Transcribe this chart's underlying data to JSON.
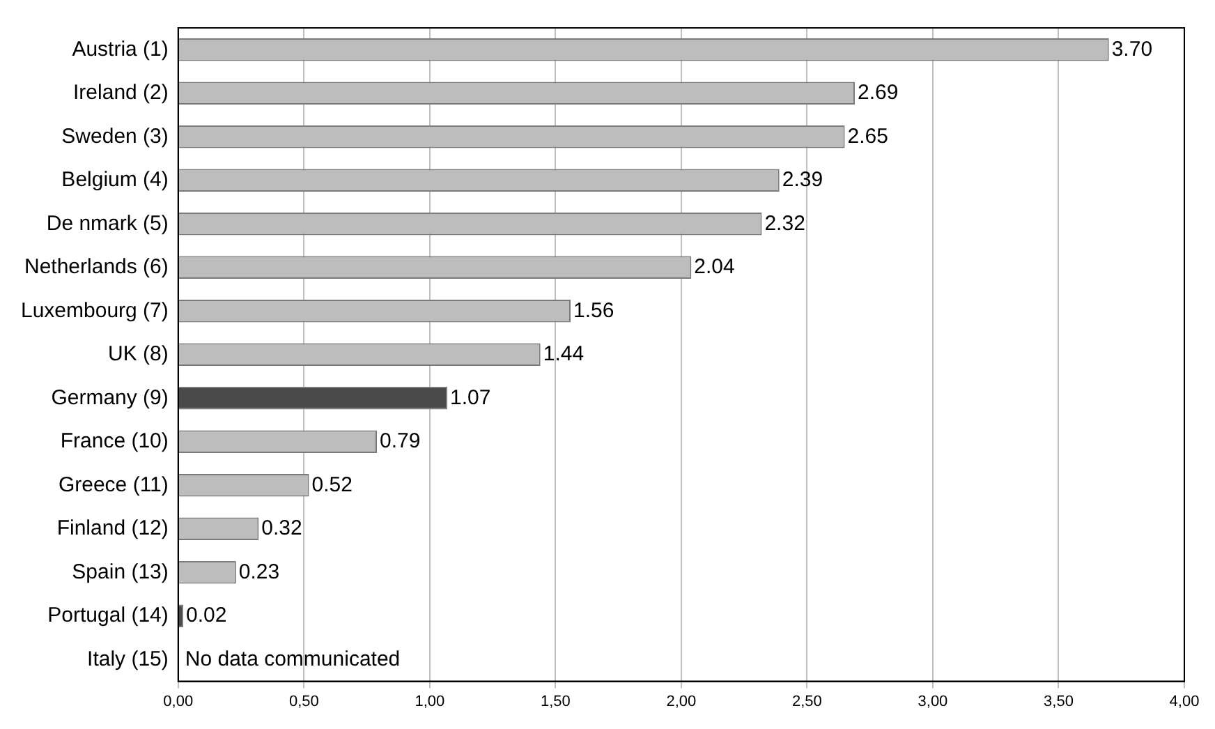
{
  "chart_data": {
    "type": "bar",
    "orientation": "horizontal",
    "categories": [
      "Austria (1)",
      "Ireland (2)",
      "Sweden (3)",
      "Belgium (4)",
      "De nmark (5)",
      "Netherlands (6)",
      "Luxembourg (7)",
      "UK (8)",
      "Germany (9)",
      "France (10)",
      "Greece (11)",
      "Finland (12)",
      "Spain (13)",
      "Portugal (14)",
      "Italy (15)"
    ],
    "values": [
      3.7,
      2.69,
      2.65,
      2.39,
      2.32,
      2.04,
      1.56,
      1.44,
      1.07,
      0.79,
      0.52,
      0.32,
      0.23,
      0.02,
      null
    ],
    "colors": [
      "#bdbdbd",
      "#bdbdbd",
      "#bdbdbd",
      "#bdbdbd",
      "#bdbdbd",
      "#bdbdbd",
      "#bdbdbd",
      "#bdbdbd",
      "#4a4a4a",
      "#bdbdbd",
      "#bdbdbd",
      "#bdbdbd",
      "#bdbdbd",
      "#4a4a4a",
      "#bdbdbd"
    ],
    "value_labels": [
      "3.70",
      "2.69",
      "2.65",
      "2.39",
      "2.32",
      "2.04",
      "1.56",
      "1.44",
      "1.07",
      "0.79",
      "0.52",
      "0.32",
      "0.23",
      "0.02",
      null
    ],
    "xlim": [
      0,
      4
    ],
    "xticks": [
      {
        "value": 0,
        "label": "0,00"
      },
      {
        "value": 0.5,
        "label": "0,50"
      },
      {
        "value": 1,
        "label": "1,00"
      },
      {
        "value": 1.5,
        "label": "1,50"
      },
      {
        "value": 2,
        "label": "2,00"
      },
      {
        "value": 2.5,
        "label": "2,50"
      },
      {
        "value": 3,
        "label": "3,00"
      },
      {
        "value": 3.5,
        "label": "3,50"
      },
      {
        "value": 4,
        "label": "4,00"
      }
    ],
    "grid": "x",
    "legend": false,
    "annotations": [
      "No data communicated"
    ]
  }
}
